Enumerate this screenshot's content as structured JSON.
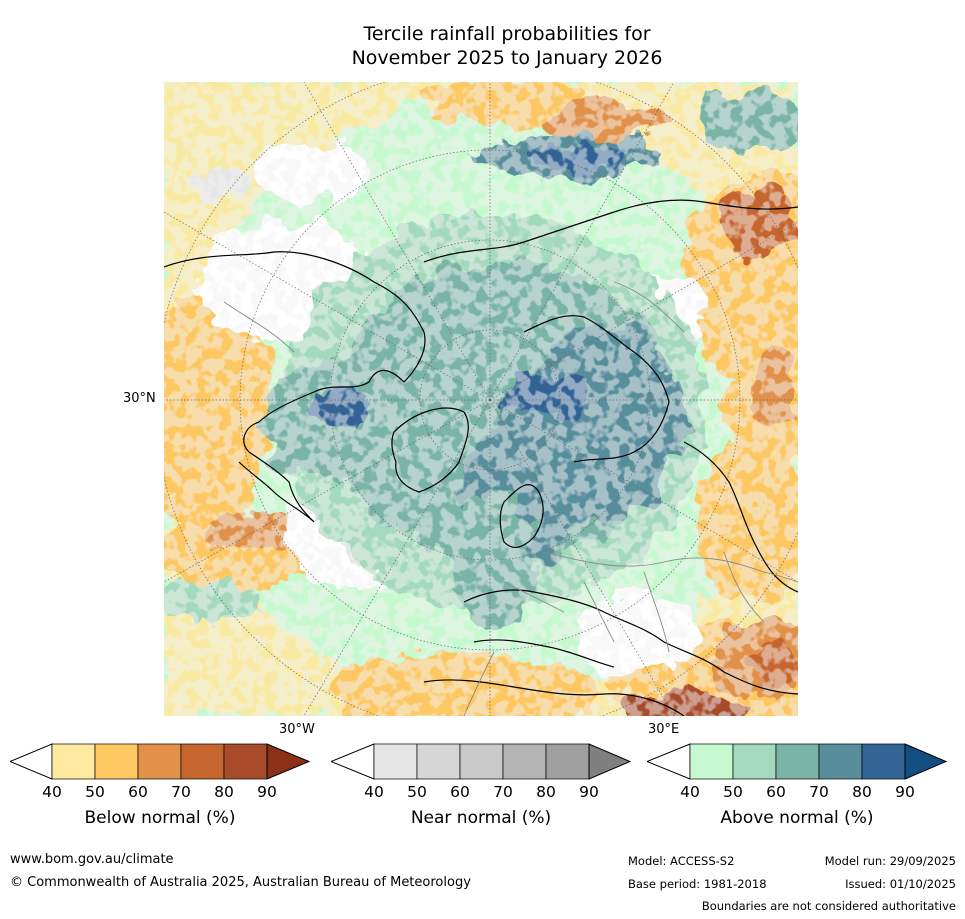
{
  "title_line1": "Tercile rainfall probabilities for",
  "title_line2": "November 2025 to January 2026",
  "map": {
    "lat_label": "30°N",
    "lon_label_left": "30°W",
    "lon_label_right": "30°E",
    "colors": {
      "below": [
        "#fee99e",
        "#fdc762",
        "#e19149",
        "#c7652f",
        "#a84b2b",
        "#8c3018"
      ],
      "near": [
        "#e6e6e6",
        "#d6d6d6",
        "#c9c9c9",
        "#b4b4b4",
        "#9f9f9f",
        "#7f7f7f"
      ],
      "above": [
        "#c7f9d0",
        "#a3d9bc",
        "#7ab4a7",
        "#588e9c",
        "#336496",
        "#124e82"
      ]
    }
  },
  "colorbars": {
    "ticks": [
      "40",
      "50",
      "60",
      "70",
      "80",
      "90"
    ],
    "below_label": "Below normal (%)",
    "near_label": "Near normal (%)",
    "above_label": "Above normal (%)"
  },
  "footer": {
    "website": "www.bom.gov.au/climate",
    "copyright": "© Commonwealth of Australia 2025, Australian Bureau of Meteorology",
    "model": "Model: ACCESS-S2",
    "base_period": "Base period: 1981-2018",
    "model_run": "Model run: 29/09/2025",
    "issued": "Issued: 01/10/2025",
    "disclaimer": "Boundaries are not considered authoritative"
  }
}
